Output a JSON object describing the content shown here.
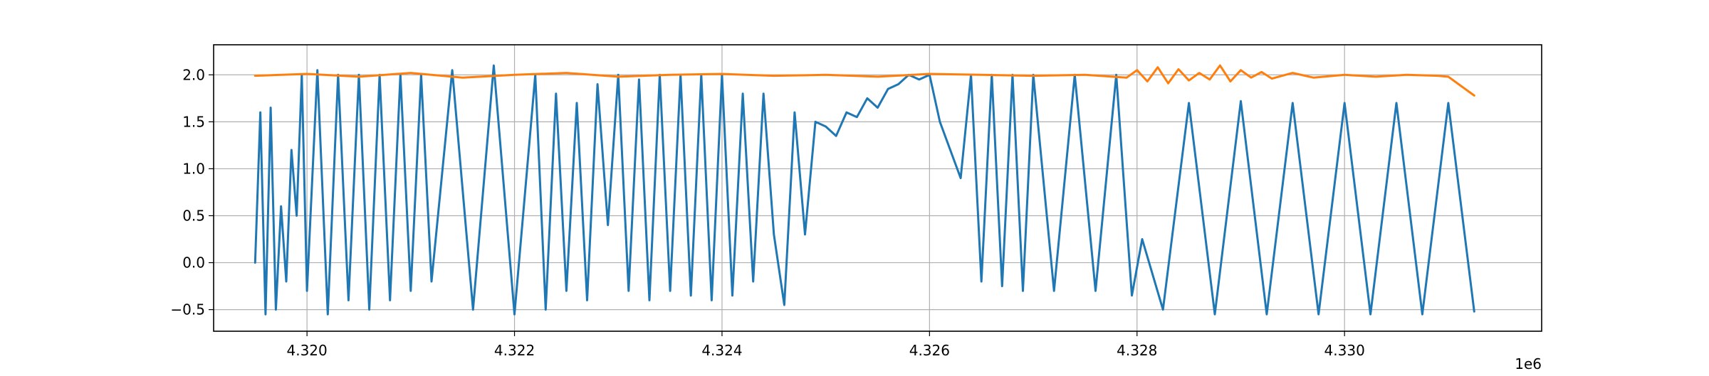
{
  "chart_data": {
    "type": "line",
    "title": "",
    "xlabel": "",
    "ylabel": "",
    "x_offset_label": "1e6",
    "xlim": [
      4319100,
      4331900
    ],
    "ylim": [
      -0.73,
      2.32
    ],
    "x_ticks": [
      {
        "value": 4320000,
        "label": "4.320"
      },
      {
        "value": 4322000,
        "label": "4.322"
      },
      {
        "value": 4324000,
        "label": "4.324"
      },
      {
        "value": 4326000,
        "label": "4.326"
      },
      {
        "value": 4328000,
        "label": "4.328"
      },
      {
        "value": 4330000,
        "label": "4.330"
      }
    ],
    "y_ticks": [
      {
        "value": -0.5,
        "label": "−0.5"
      },
      {
        "value": 0.0,
        "label": "0.0"
      },
      {
        "value": 0.5,
        "label": "0.5"
      },
      {
        "value": 1.0,
        "label": "1.0"
      },
      {
        "value": 1.5,
        "label": "1.5"
      },
      {
        "value": 2.0,
        "label": "2.0"
      }
    ],
    "grid": true,
    "legend": "none",
    "series": [
      {
        "color": "#1f77b4",
        "x": [
          4319500,
          4319550,
          4319600,
          4319650,
          4319700,
          4319750,
          4319800,
          4319850,
          4319900,
          4319950,
          4320000,
          4320100,
          4320200,
          4320300,
          4320400,
          4320500,
          4320600,
          4320700,
          4320800,
          4320900,
          4321000,
          4321100,
          4321200,
          4321400,
          4321600,
          4321800,
          4322000,
          4322200,
          4322300,
          4322400,
          4322500,
          4322600,
          4322700,
          4322800,
          4322900,
          4323000,
          4323100,
          4323200,
          4323300,
          4323400,
          4323500,
          4323600,
          4323700,
          4323800,
          4323900,
          4324000,
          4324100,
          4324200,
          4324300,
          4324400,
          4324500,
          4324600,
          4324700,
          4324800,
          4324900,
          4325000,
          4325100,
          4325200,
          4325300,
          4325400,
          4325500,
          4325600,
          4325700,
          4325800,
          4325900,
          4326000,
          4326100,
          4326200,
          4326300,
          4326400,
          4326500,
          4326600,
          4326700,
          4326800,
          4326900,
          4327000,
          4327200,
          4327400,
          4327600,
          4327800,
          4327950,
          4328050,
          4328250,
          4328500,
          4328750,
          4329000,
          4329250,
          4329500,
          4329750,
          4330000,
          4330250,
          4330500,
          4330750,
          4331000,
          4331250
        ],
        "y": [
          0.0,
          1.6,
          -0.55,
          1.65,
          -0.5,
          0.6,
          -0.2,
          1.2,
          0.5,
          2.0,
          -0.3,
          2.05,
          -0.55,
          2.0,
          -0.4,
          2.0,
          -0.5,
          2.0,
          -0.4,
          2.0,
          -0.3,
          2.0,
          -0.2,
          2.05,
          -0.5,
          2.1,
          -0.55,
          2.0,
          -0.5,
          1.8,
          -0.3,
          1.7,
          -0.4,
          1.9,
          0.4,
          2.0,
          -0.3,
          1.95,
          -0.4,
          2.0,
          -0.3,
          2.0,
          -0.35,
          2.0,
          -0.4,
          2.0,
          -0.35,
          1.8,
          -0.2,
          1.8,
          0.3,
          -0.45,
          1.6,
          0.3,
          1.5,
          1.45,
          1.35,
          1.6,
          1.55,
          1.75,
          1.65,
          1.85,
          1.9,
          2.0,
          1.95,
          2.0,
          1.5,
          1.2,
          0.9,
          2.0,
          -0.2,
          2.0,
          -0.25,
          2.0,
          -0.3,
          2.0,
          -0.3,
          2.0,
          -0.3,
          2.0,
          -0.35,
          0.25,
          -0.5,
          1.7,
          -0.55,
          1.72,
          -0.55,
          1.7,
          -0.55,
          1.7,
          -0.55,
          1.7,
          -0.55,
          1.7,
          -0.52
        ]
      },
      {
        "color": "#ff7f0e",
        "x": [
          4319500,
          4320000,
          4320500,
          4321000,
          4321500,
          4322000,
          4322500,
          4323000,
          4323500,
          4324000,
          4324500,
          4325000,
          4325500,
          4326000,
          4326500,
          4327000,
          4327500,
          4327900,
          4328000,
          4328100,
          4328200,
          4328300,
          4328400,
          4328500,
          4328600,
          4328700,
          4328800,
          4328900,
          4329000,
          4329100,
          4329200,
          4329300,
          4329500,
          4329700,
          4330000,
          4330300,
          4330600,
          4330900,
          4331000,
          4331100,
          4331200,
          4331250
        ],
        "y": [
          1.99,
          2.01,
          1.98,
          2.02,
          1.97,
          2.0,
          2.02,
          1.98,
          2.0,
          2.01,
          1.99,
          2.0,
          1.98,
          2.01,
          2.0,
          1.99,
          2.0,
          1.97,
          2.05,
          1.93,
          2.08,
          1.91,
          2.06,
          1.94,
          2.02,
          1.95,
          2.1,
          1.93,
          2.05,
          1.97,
          2.03,
          1.96,
          2.02,
          1.97,
          2.0,
          1.98,
          2.0,
          1.99,
          1.98,
          1.9,
          1.82,
          1.78
        ]
      }
    ]
  }
}
